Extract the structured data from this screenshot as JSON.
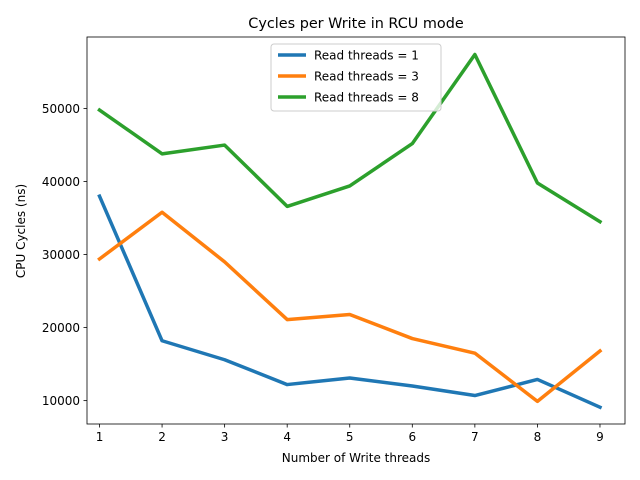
{
  "chart_data": {
    "type": "line",
    "title": "Cycles per Write in RCU mode",
    "xlabel": "Number of Write threads",
    "ylabel": "CPU Cycles (ns)",
    "x": [
      1,
      2,
      3,
      4,
      5,
      6,
      7,
      8,
      9
    ],
    "xlim": [
      0.8,
      9.4
    ],
    "ylim": [
      6800,
      59800
    ],
    "yticks": [
      10000,
      20000,
      30000,
      40000,
      50000
    ],
    "grid": false,
    "legend_position": "upper-center",
    "series": [
      {
        "name": "Read threads = 1",
        "color": "#1f77b4",
        "values": [
          38000,
          18200,
          15600,
          12200,
          13100,
          12000,
          10700,
          12900,
          9100
        ]
      },
      {
        "name": "Read threads = 3",
        "color": "#ff7f0e",
        "values": [
          29400,
          35800,
          29000,
          21100,
          21800,
          18500,
          16500,
          9900,
          16800
        ]
      },
      {
        "name": "Read threads = 8",
        "color": "#2ca02c",
        "values": [
          49800,
          43800,
          45000,
          36600,
          39400,
          45200,
          57400,
          39800,
          34500
        ]
      }
    ]
  }
}
